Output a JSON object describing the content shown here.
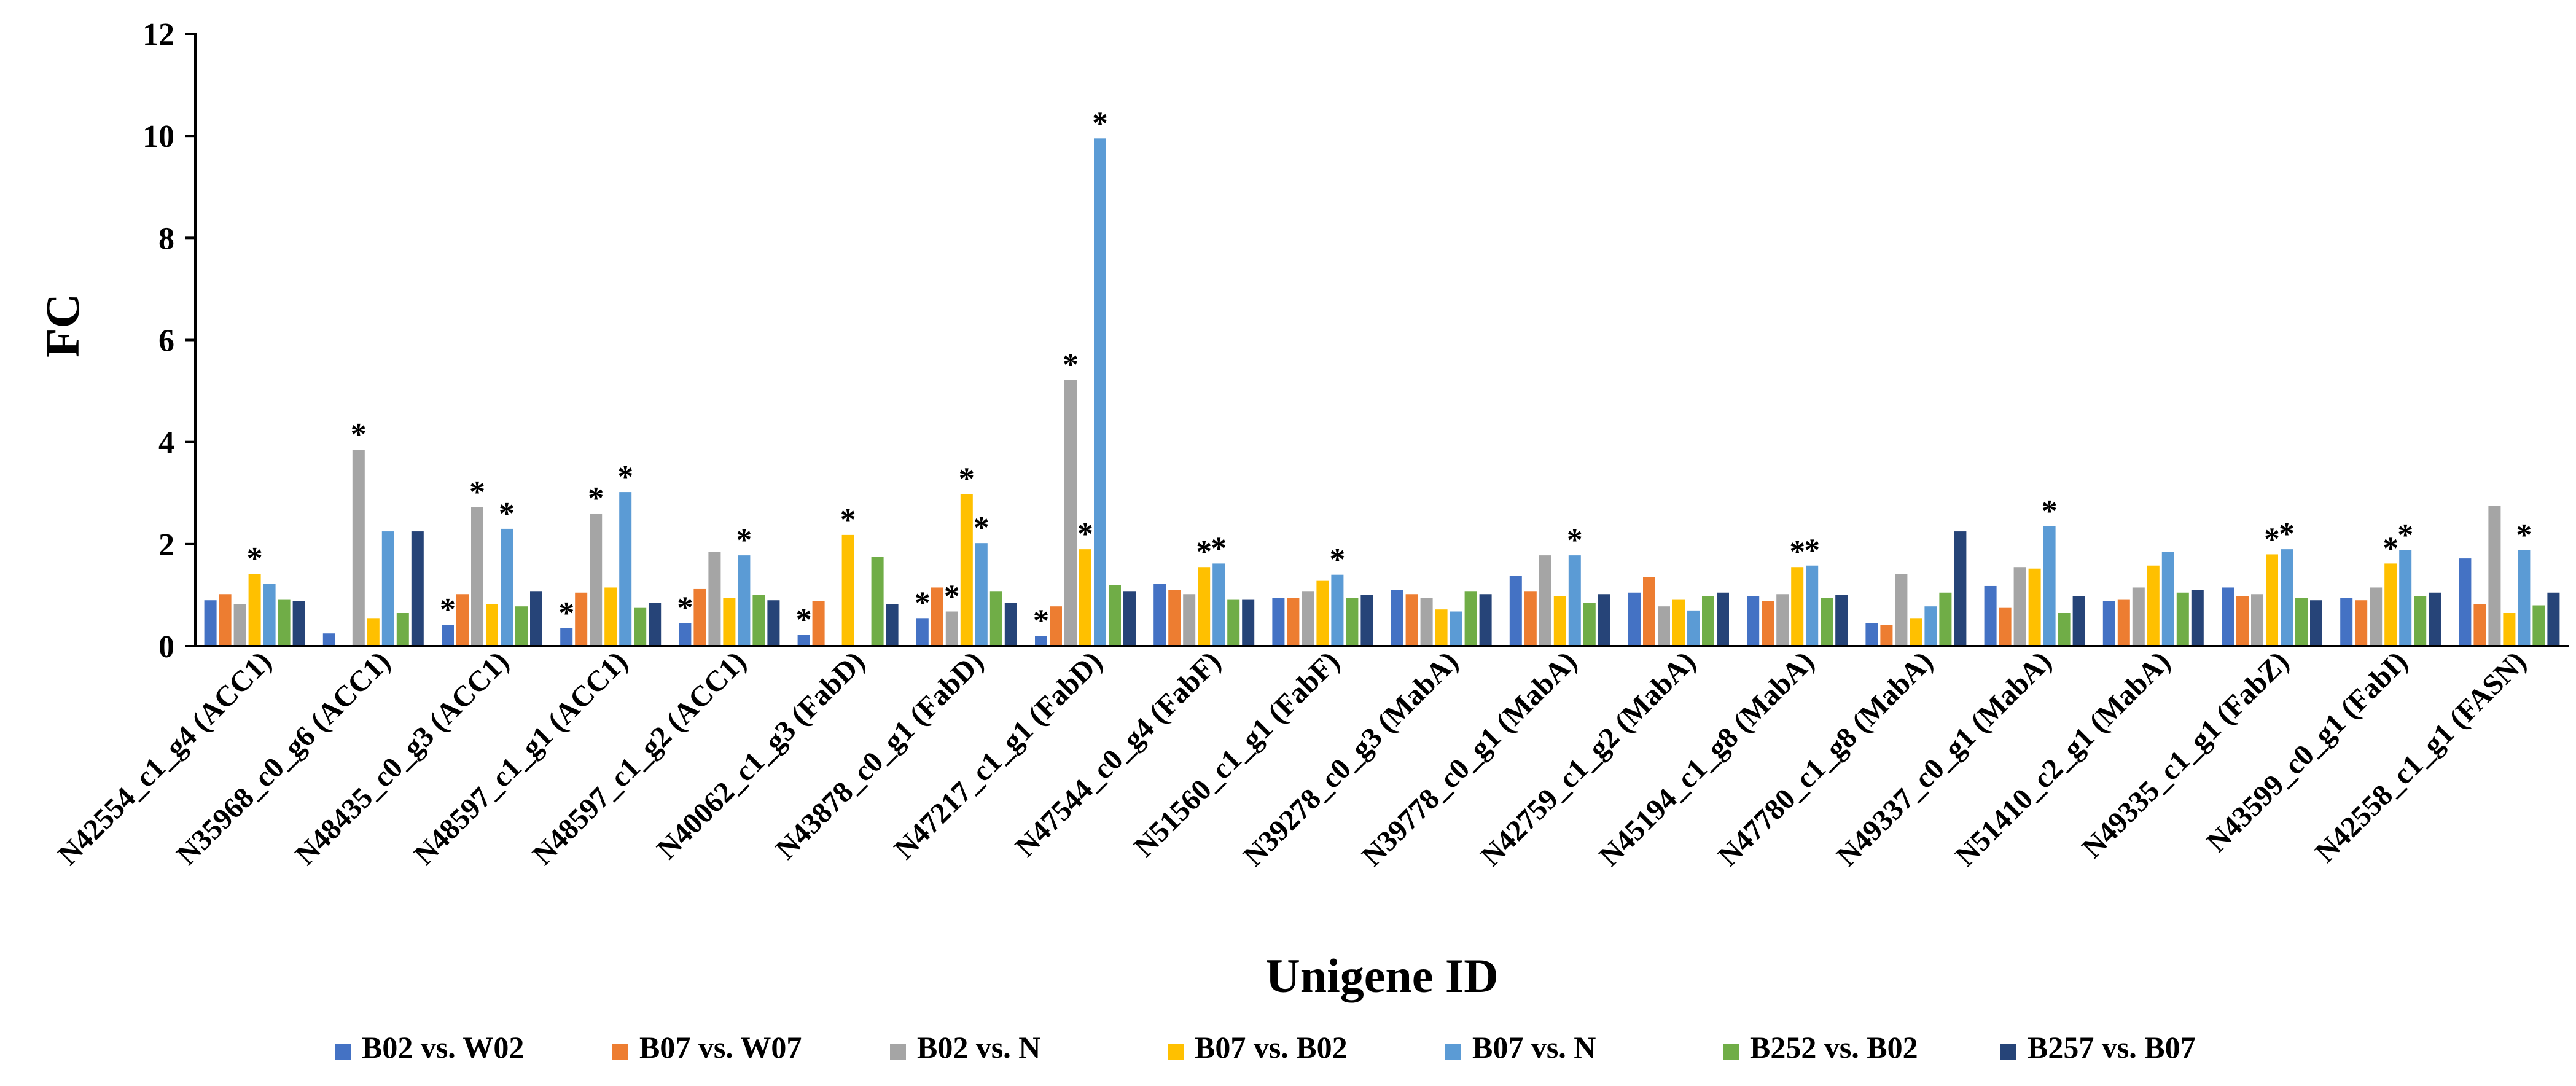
{
  "chart_data": {
    "type": "bar",
    "ylabel": "FC",
    "xlabel": "Unigene ID",
    "ylim": [
      0,
      12
    ],
    "yticks": [
      0,
      2,
      4,
      6,
      8,
      10,
      12
    ],
    "grid": false,
    "legend_position": "bottom",
    "categories": [
      "N42554_c1_g4 (ACC1)",
      "N35968_c0_g6 (ACC1)",
      "N48435_c0_g3 (ACC1)",
      "N48597_c1_g1 (ACC1)",
      "N48597_c1_g2 (ACC1)",
      "N40062_c1_g3 (FabD)",
      "N43878_c0_g1 (FabD)",
      "N47217_c1_g1 (FabD)",
      "N47544_c0_g4 (FabF)",
      "N51560_c1_g1 (FabF)",
      "N39278_c0_g3 (MabA)",
      "N39778_c0_g1 (MabA)",
      "N42759_c1_g2 (MabA)",
      "N45194_c1_g8 (MabA)",
      "N47780_c1_g8 (MabA)",
      "N49337_c0_g1 (MabA)",
      "N51410_c2_g1 (MabA)",
      "N49335_c1_g1 (FabZ)",
      "N43599_c0_g1 (FabI)",
      "N42558_c1_g1 (FASN)"
    ],
    "series": [
      {
        "name": "B02 vs. W02",
        "color": "#4472C4",
        "values": [
          0.9,
          0.25,
          0.42,
          0.35,
          0.45,
          0.22,
          0.55,
          0.2,
          1.22,
          0.95,
          1.1,
          1.38,
          1.05,
          0.98,
          0.45,
          1.18,
          0.88,
          1.15,
          0.95,
          1.72
        ],
        "stars": [
          false,
          false,
          true,
          true,
          true,
          true,
          true,
          true,
          false,
          false,
          false,
          false,
          false,
          false,
          false,
          false,
          false,
          false,
          false,
          false
        ]
      },
      {
        "name": "B07 vs. W07",
        "color": "#ED7D31",
        "values": [
          1.02,
          0,
          1.02,
          1.05,
          1.12,
          0.88,
          1.15,
          0.78,
          1.1,
          0.95,
          1.02,
          1.08,
          1.35,
          0.88,
          0.42,
          0.75,
          0.92,
          0.98,
          0.9,
          0.82
        ],
        "stars": [
          false,
          false,
          false,
          false,
          false,
          false,
          false,
          false,
          false,
          false,
          false,
          false,
          false,
          false,
          false,
          false,
          false,
          false,
          false,
          false
        ]
      },
      {
        "name": "B02 vs. N",
        "color": "#A5A5A5",
        "values": [
          0.82,
          3.85,
          2.72,
          2.6,
          1.85,
          0,
          0.68,
          5.22,
          1.02,
          1.08,
          0.95,
          1.78,
          0.78,
          1.02,
          1.42,
          1.55,
          1.15,
          1.02,
          1.15,
          2.75
        ],
        "stars": [
          false,
          true,
          true,
          true,
          false,
          false,
          true,
          true,
          false,
          false,
          false,
          false,
          false,
          false,
          false,
          false,
          false,
          false,
          false,
          false
        ]
      },
      {
        "name": "B07 vs. B02",
        "color": "#FFC000",
        "values": [
          1.42,
          0.55,
          0.82,
          1.15,
          0.95,
          2.18,
          2.98,
          1.9,
          1.55,
          1.28,
          0.72,
          0.98,
          0.92,
          1.55,
          0.55,
          1.52,
          1.58,
          1.8,
          1.62,
          0.65
        ],
        "stars": [
          true,
          false,
          false,
          false,
          false,
          true,
          true,
          true,
          true,
          false,
          false,
          false,
          false,
          true,
          false,
          false,
          false,
          true,
          true,
          false
        ]
      },
      {
        "name": "B07 vs. N",
        "color": "#5B9BD5",
        "values": [
          1.22,
          2.25,
          2.3,
          3.02,
          1.78,
          0,
          2.02,
          9.95,
          1.62,
          1.4,
          0.68,
          1.78,
          0.7,
          1.58,
          0.78,
          2.35,
          1.85,
          1.9,
          1.88,
          1.88
        ],
        "stars": [
          false,
          false,
          true,
          true,
          true,
          false,
          true,
          true,
          true,
          true,
          false,
          true,
          false,
          true,
          false,
          true,
          false,
          true,
          true,
          true
        ]
      },
      {
        "name": "B252 vs. B02",
        "color": "#70AD47",
        "values": [
          0.92,
          0.65,
          0.78,
          0.75,
          1.0,
          1.75,
          1.08,
          1.2,
          0.92,
          0.95,
          1.08,
          0.85,
          0.98,
          0.95,
          1.05,
          0.65,
          1.05,
          0.95,
          0.98,
          0.8
        ],
        "stars": [
          false,
          false,
          false,
          false,
          false,
          false,
          false,
          false,
          false,
          false,
          false,
          false,
          false,
          false,
          false,
          false,
          false,
          false,
          false,
          false
        ]
      },
      {
        "name": "B257 vs. B07",
        "color": "#264478",
        "values": [
          0.88,
          2.25,
          1.08,
          0.85,
          0.9,
          0.82,
          0.85,
          1.08,
          0.92,
          1.0,
          1.02,
          1.02,
          1.05,
          1.0,
          2.25,
          0.98,
          1.1,
          0.9,
          1.05,
          1.05
        ],
        "stars": [
          false,
          false,
          false,
          false,
          false,
          false,
          false,
          false,
          false,
          false,
          false,
          false,
          false,
          false,
          false,
          false,
          false,
          false,
          false,
          false
        ]
      }
    ],
    "star_marker": "*"
  }
}
